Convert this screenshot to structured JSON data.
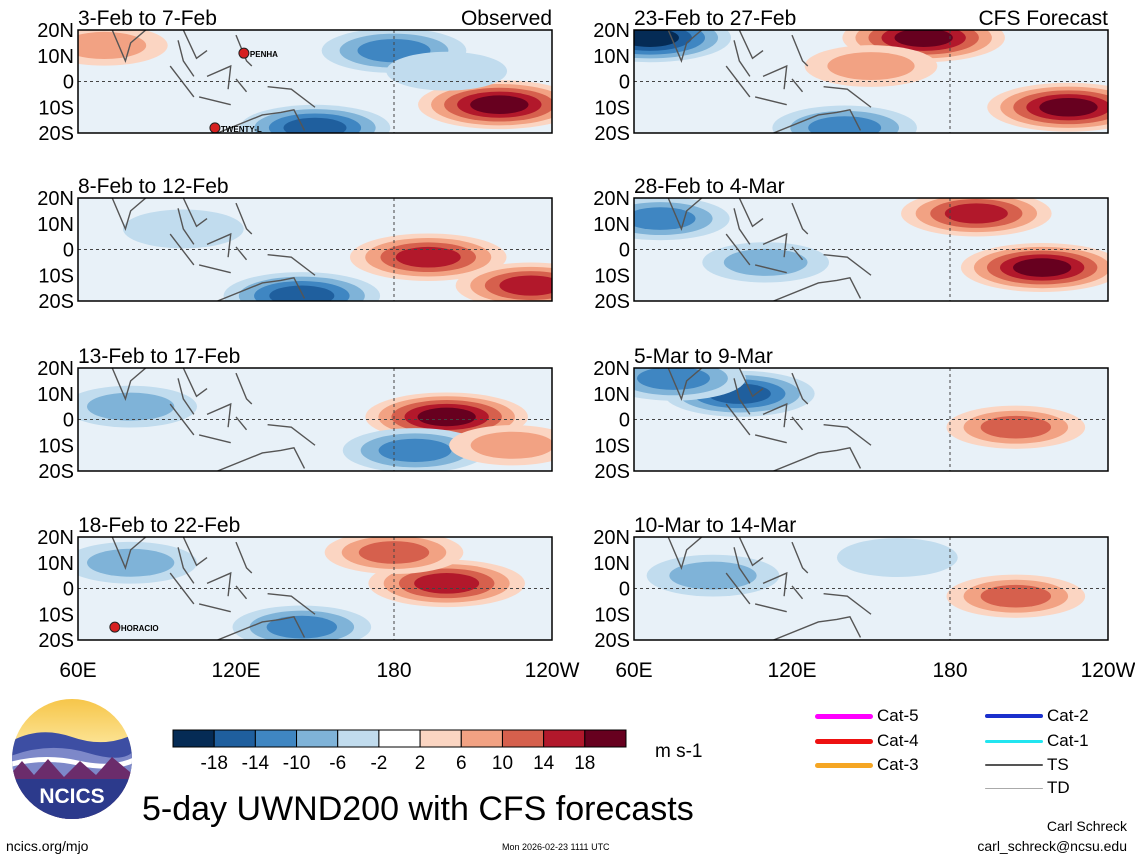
{
  "chart_data": {
    "type": "heatmap",
    "title": "5-day UWND200 with CFS forecasts",
    "variable": "UWND200",
    "units": "m s-1",
    "x_ticks": [
      "60E",
      "120E",
      "180",
      "120W"
    ],
    "y_ticks": [
      "20N",
      "10N",
      "0",
      "10S",
      "20S"
    ],
    "lon_range": [
      60,
      240
    ],
    "lat_range": [
      -20,
      20
    ],
    "colorbar": {
      "labels": [
        "-18",
        "-14",
        "-10",
        "-6",
        "-2",
        "2",
        "6",
        "10",
        "14",
        "18"
      ],
      "levels": [
        -18,
        -14,
        -10,
        -6,
        -2,
        2,
        6,
        10,
        14,
        18
      ],
      "colors": [
        "#052b55",
        "#1f5f9e",
        "#3f86c2",
        "#7fb3d8",
        "#c1dcee",
        "#ffffff",
        "#fbd5c2",
        "#f2a283",
        "#d6604d",
        "#b2182b",
        "#67001f"
      ]
    },
    "panels": [
      {
        "label": "3-Feb to 7-Feb",
        "tag": "Observed",
        "storms": [
          {
            "name": "PENHA",
            "lon": 123,
            "lat": 11
          },
          {
            "name": "TWENTY-L",
            "lon": 112,
            "lat": -18
          }
        ],
        "features": [
          {
            "lon": 180,
            "lat": 12,
            "v": -12
          },
          {
            "lon": 220,
            "lat": -9,
            "v": 18
          },
          {
            "lon": 150,
            "lat": -18,
            "v": -14
          },
          {
            "lon": 70,
            "lat": 14,
            "v": 6
          },
          {
            "lon": 200,
            "lat": 4,
            "v": -4
          }
        ]
      },
      {
        "label": "8-Feb to 12-Feb",
        "tag": "",
        "storms": [],
        "features": [
          {
            "lon": 193,
            "lat": -3,
            "v": 16
          },
          {
            "lon": 232,
            "lat": -14,
            "v": 14
          },
          {
            "lon": 145,
            "lat": -18,
            "v": -16
          },
          {
            "lon": 100,
            "lat": 8,
            "v": -4
          }
        ]
      },
      {
        "label": "13-Feb to 17-Feb",
        "tag": "",
        "storms": [],
        "features": [
          {
            "lon": 200,
            "lat": 1,
            "v": 18
          },
          {
            "lon": 188,
            "lat": -12,
            "v": -12
          },
          {
            "lon": 80,
            "lat": 5,
            "v": -8
          },
          {
            "lon": 225,
            "lat": -10,
            "v": 6
          }
        ]
      },
      {
        "label": "18-Feb to 22-Feb",
        "tag": "",
        "storms": [
          {
            "name": "HORACIO",
            "lon": 74,
            "lat": -15
          }
        ],
        "features": [
          {
            "lon": 200,
            "lat": 2,
            "v": 16
          },
          {
            "lon": 180,
            "lat": 14,
            "v": 10
          },
          {
            "lon": 145,
            "lat": -15,
            "v": -10
          },
          {
            "lon": 80,
            "lat": 10,
            "v": -8
          }
        ]
      },
      {
        "label": "23-Feb to 27-Feb",
        "tag": "CFS Forecast",
        "storms": [],
        "features": [
          {
            "lon": 170,
            "lat": 17,
            "v": 18
          },
          {
            "lon": 225,
            "lat": -10,
            "v": 18
          },
          {
            "lon": 66,
            "lat": 17,
            "v": -18
          },
          {
            "lon": 140,
            "lat": -18,
            "v": -12
          },
          {
            "lon": 150,
            "lat": 6,
            "v": 8
          }
        ]
      },
      {
        "label": "28-Feb to 4-Mar",
        "tag": "",
        "storms": [],
        "features": [
          {
            "lon": 190,
            "lat": 14,
            "v": 14
          },
          {
            "lon": 215,
            "lat": -7,
            "v": 18
          },
          {
            "lon": 70,
            "lat": 12,
            "v": -10
          },
          {
            "lon": 110,
            "lat": -5,
            "v": -6
          }
        ]
      },
      {
        "label": "5-Mar to 9-Mar",
        "tag": "",
        "storms": [],
        "features": [
          {
            "lon": 205,
            "lat": -3,
            "v": 10
          },
          {
            "lon": 100,
            "lat": 10,
            "v": -14
          },
          {
            "lon": 75,
            "lat": 16,
            "v": -12
          }
        ]
      },
      {
        "label": "10-Mar to 14-Mar",
        "tag": "",
        "storms": [],
        "features": [
          {
            "lon": 205,
            "lat": -3,
            "v": 10
          },
          {
            "lon": 90,
            "lat": 5,
            "v": -8
          },
          {
            "lon": 160,
            "lat": 12,
            "v": -4
          }
        ]
      }
    ],
    "track_legend": [
      {
        "label": "Cat-5",
        "color": "#ff00ff"
      },
      {
        "label": "Cat-4",
        "color": "#ee1111"
      },
      {
        "label": "Cat-3",
        "color": "#f5a623"
      },
      {
        "label": "Cat-2",
        "color": "#1a2fcc"
      },
      {
        "label": "Cat-1",
        "color": "#22e5f0"
      },
      {
        "label": "TS",
        "color": "#555555"
      },
      {
        "label": "TD",
        "color": "#aaaaaa"
      }
    ]
  },
  "logo": {
    "text": "NCICS"
  },
  "footer": {
    "url": "ncics.org/mjo",
    "timestamp": "Mon 2026-02-23 1111 UTC",
    "author": "Carl Schreck",
    "email": "carl_schreck@ncsu.edu"
  }
}
